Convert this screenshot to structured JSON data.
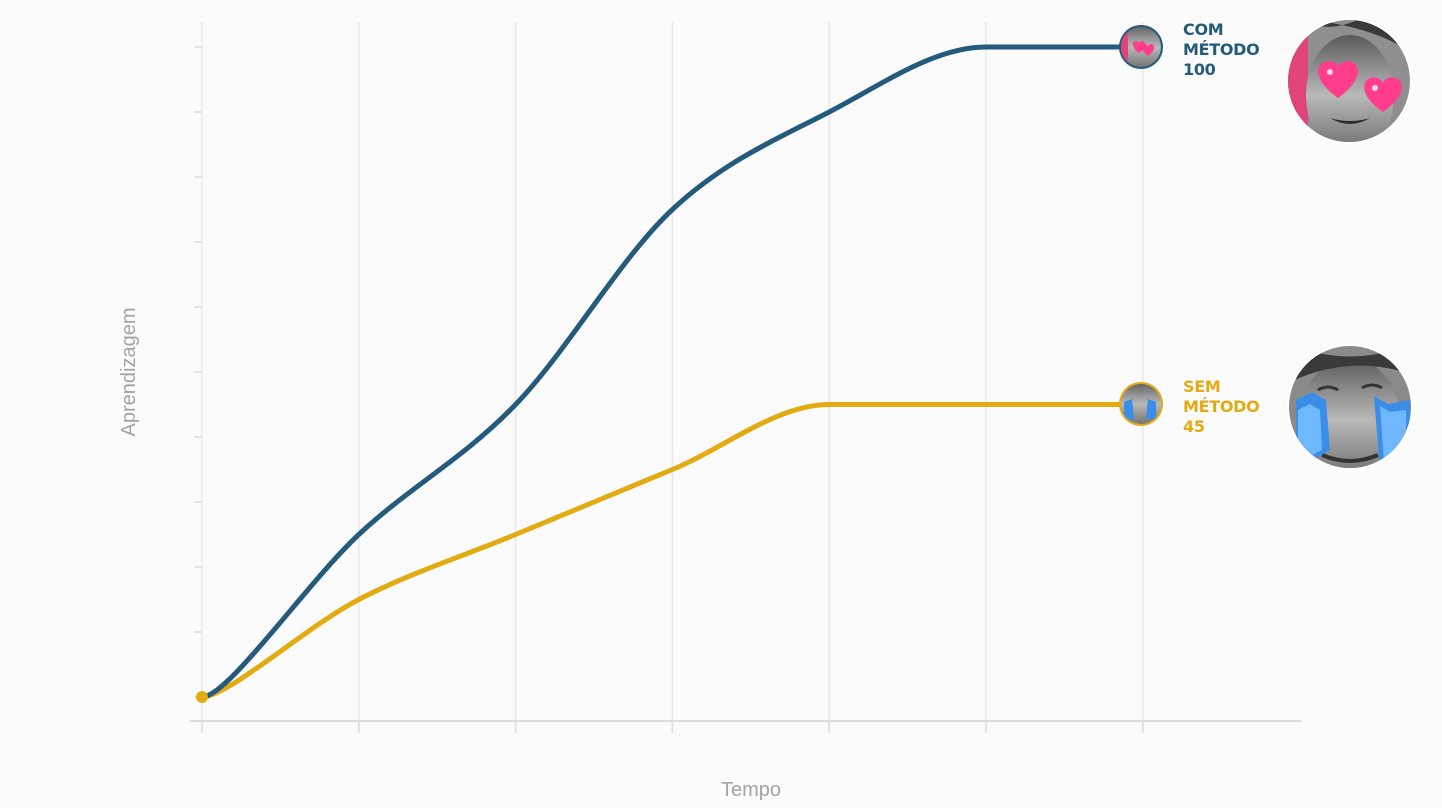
{
  "chart_data": {
    "type": "line",
    "title": "",
    "xlabel": "Tempo",
    "ylabel": "Aprendizagem",
    "x": [
      0,
      1,
      2,
      3,
      4,
      5,
      6
    ],
    "xlim": [
      0,
      7
    ],
    "ylim": [
      0,
      100
    ],
    "grid": {
      "vertical": true,
      "horizontal": false
    },
    "series": [
      {
        "name": "COM MÉTODO",
        "end_value_label": "100",
        "color": "#245a7b",
        "avatar": "heart-eyes-avatar",
        "values": [
          0,
          25,
          45,
          75,
          90,
          100,
          100
        ]
      },
      {
        "name": "SEM MÉTODO",
        "end_value_label": "45",
        "color": "#e2ab12",
        "avatar": "crying-avatar",
        "values": [
          0,
          15,
          25,
          35,
          45,
          45,
          45
        ]
      }
    ]
  },
  "colors": {
    "background": "#fbfbfb",
    "grid": "#e7e7e7",
    "axis": "#dddddd",
    "axis_title": "#a3a3a3"
  },
  "icons": {
    "com_avatar": "heart-eyes-face-icon",
    "sem_avatar": "crying-face-icon"
  }
}
